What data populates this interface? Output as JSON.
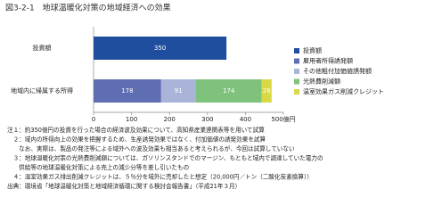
{
  "chart_data": {
    "type": "stacked-bar-horizontal",
    "title": "図3-2-1　地球温暖化対策の地域経済への効果",
    "categories": [
      "投資額",
      "地域内に帰属する所得"
    ],
    "series": [
      {
        "name": "投資額",
        "color": "#1f4e9e",
        "values": [
          350,
          null
        ]
      },
      {
        "name": "雇用者所得誘発額",
        "color": "#5f6db3",
        "values": [
          null,
          178
        ]
      },
      {
        "name": "その他粗付加価値誘発額",
        "color": "#a9b4d8",
        "values": [
          null,
          91
        ]
      },
      {
        "name": "光熱費削減額",
        "color": "#7ec27c",
        "values": [
          null,
          174
        ]
      },
      {
        "name": "温室効果ガス削減クレジット",
        "color": "#d9d845",
        "values": [
          null,
          26
        ]
      }
    ],
    "xlim": [
      0,
      500
    ],
    "xticks": [
      0,
      100,
      200,
      300,
      400,
      {
        "value": 500,
        "label": "500億円"
      }
    ],
    "notes": [
      "注１：約350億円の投資を行った場合の経済波及効果について、高知県産業連関表等を用いて試算",
      "　２：域内の所得向上の効果を把握するため、生産誘発効果ではなく、付加価値の誘発効果を試算",
      "　　なお、実際は、製品の発注等による域外への波及効果も相当あると考えられるが、今回は試算していない",
      "　３：地球温暖化対策の光熱費削減額については、ガソリンスタンドでのマージン、もともと域内で調達していた電力の",
      "　　供給等の地球温暖化対策による売上の減少分等を差し引いたもの",
      "　４：温室効果ガス排出削減クレジットは、５％分を域外に売却したと想定（20,000円／トン（二酸化炭素換算））",
      "出典：環境省「地球温暖化対策と地域経済循環に関する検討会報告書」（平成21年３月）"
    ]
  }
}
